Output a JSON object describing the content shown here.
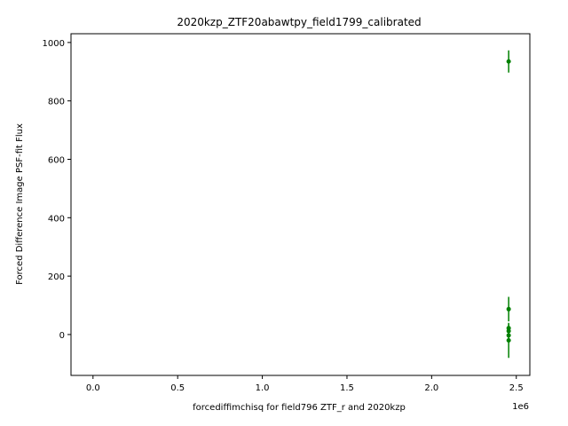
{
  "chart_data": {
    "type": "scatter",
    "title": "2020kzp_ZTF20abawtpy_field1799_calibrated",
    "xlabel": "forcediffimchisq for field796 ZTF_r and 2020kzp",
    "ylabel": "Forced Difference Image PSF-fit Flux",
    "x_offset_label": "1e6",
    "xlim": [
      -0.13,
      2.58
    ],
    "ylim": [
      -140,
      1030
    ],
    "x_scale": 1000000,
    "x_ticks": [
      0.0,
      0.5,
      1.0,
      1.5,
      2.0,
      2.5
    ],
    "x_tick_labels": [
      "0.0",
      "0.5",
      "1.0",
      "1.5",
      "2.0",
      "2.5"
    ],
    "y_ticks": [
      0,
      200,
      400,
      600,
      800,
      1000
    ],
    "y_tick_labels": [
      "0",
      "200",
      "400",
      "600",
      "800",
      "1000"
    ],
    "grid": false,
    "color": "#008000",
    "points": [
      {
        "x": 2.455,
        "y": 935,
        "err": 38
      },
      {
        "x": 2.455,
        "y": 87,
        "err": 42
      },
      {
        "x": 2.455,
        "y": 22,
        "err": 15
      },
      {
        "x": 2.455,
        "y": 12,
        "err": 15
      },
      {
        "x": 2.455,
        "y": -3,
        "err": 15
      },
      {
        "x": 2.455,
        "y": -20,
        "err": 60
      }
    ]
  }
}
